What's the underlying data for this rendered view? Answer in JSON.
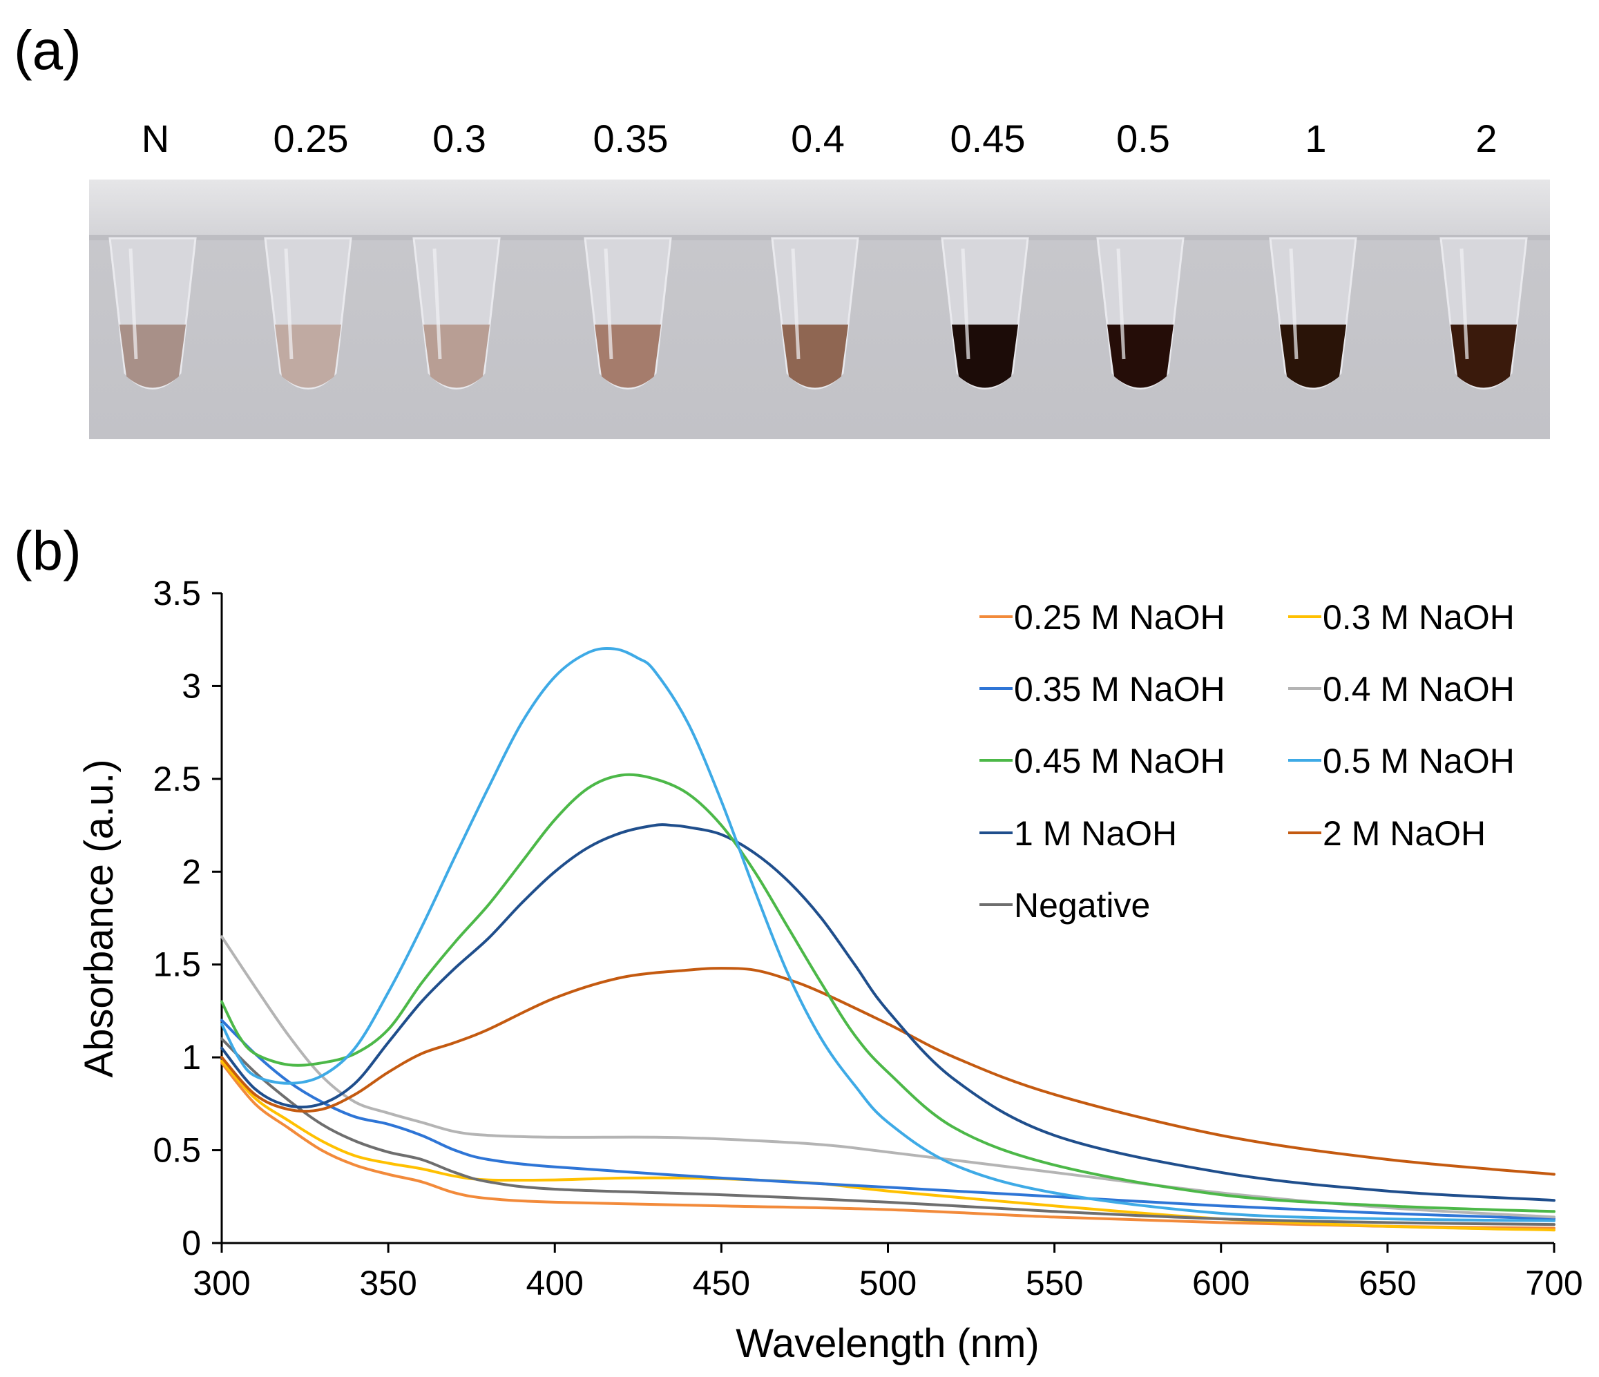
{
  "panel_a": {
    "label": "(a)",
    "tube_labels": [
      "N",
      "0.25",
      "0.3",
      "0.35",
      "0.4",
      "0.45",
      "0.5",
      "1",
      "2"
    ],
    "tube_liquid_colors": [
      "#a89088",
      "#c0aaa2",
      "#b89e94",
      "#a57c6c",
      "#8f6652",
      "#1c0c08",
      "#250d08",
      "#2a1408",
      "#3a1a0c"
    ],
    "background_color": "#c8c8cc"
  },
  "panel_b": {
    "label": "(b)"
  },
  "chart_data": {
    "type": "line",
    "xlabel": "Wavelength (nm)",
    "ylabel": "Absorbance (a.u.)",
    "xlim": [
      300,
      700
    ],
    "ylim": [
      0,
      3.5
    ],
    "xticks": [
      "300",
      "350",
      "400",
      "450",
      "500",
      "550",
      "600",
      "650",
      "700"
    ],
    "yticks": [
      "0",
      "0.5",
      "1",
      "1.5",
      "2",
      "2.5",
      "3",
      "3.5"
    ],
    "grid": false,
    "legend_position": "top-right",
    "series": [
      {
        "name": "0.25 M NaOH",
        "color": "#f28a3a",
        "x": [
          300,
          310,
          320,
          330,
          340,
          350,
          360,
          370,
          380,
          400,
          450,
          500,
          550,
          600,
          650,
          700
        ],
        "y": [
          0.97,
          0.75,
          0.62,
          0.5,
          0.42,
          0.37,
          0.33,
          0.27,
          0.24,
          0.22,
          0.2,
          0.18,
          0.14,
          0.11,
          0.09,
          0.08
        ]
      },
      {
        "name": "0.3 M NaOH",
        "color": "#ffc000",
        "x": [
          300,
          310,
          320,
          330,
          340,
          350,
          360,
          370,
          380,
          400,
          420,
          440,
          460,
          480,
          500,
          550,
          600,
          650,
          700
        ],
        "y": [
          0.98,
          0.78,
          0.66,
          0.55,
          0.47,
          0.43,
          0.4,
          0.36,
          0.34,
          0.34,
          0.35,
          0.35,
          0.34,
          0.32,
          0.28,
          0.2,
          0.13,
          0.09,
          0.07
        ]
      },
      {
        "name": "0.35 M NaOH",
        "color": "#2e75d6",
        "x": [
          300,
          310,
          320,
          330,
          340,
          350,
          360,
          370,
          380,
          400,
          450,
          500,
          550,
          600,
          650,
          700
        ],
        "y": [
          1.2,
          1.02,
          0.87,
          0.76,
          0.68,
          0.64,
          0.58,
          0.5,
          0.45,
          0.41,
          0.35,
          0.3,
          0.25,
          0.2,
          0.16,
          0.13
        ]
      },
      {
        "name": "0.4 M NaOH",
        "color": "#b4b4b4",
        "x": [
          300,
          310,
          320,
          330,
          340,
          350,
          360,
          370,
          380,
          400,
          430,
          450,
          480,
          500,
          550,
          600,
          650,
          700
        ],
        "y": [
          1.65,
          1.38,
          1.12,
          0.9,
          0.76,
          0.7,
          0.65,
          0.6,
          0.58,
          0.57,
          0.57,
          0.56,
          0.53,
          0.49,
          0.38,
          0.27,
          0.19,
          0.14
        ]
      },
      {
        "name": "0.45 M NaOH",
        "color": "#4cb848",
        "x": [
          300,
          305,
          310,
          320,
          330,
          340,
          350,
          360,
          370,
          380,
          390,
          400,
          410,
          420,
          430,
          440,
          450,
          460,
          470,
          480,
          490,
          500,
          520,
          550,
          600,
          650,
          700
        ],
        "y": [
          1.3,
          1.12,
          1.02,
          0.96,
          0.97,
          1.02,
          1.15,
          1.4,
          1.62,
          1.82,
          2.05,
          2.28,
          2.45,
          2.52,
          2.5,
          2.42,
          2.25,
          2.0,
          1.7,
          1.4,
          1.12,
          0.92,
          0.62,
          0.42,
          0.26,
          0.2,
          0.17
        ]
      },
      {
        "name": "0.5 M NaOH",
        "color": "#3eaae6",
        "x": [
          300,
          305,
          310,
          320,
          330,
          340,
          350,
          360,
          370,
          380,
          390,
          400,
          410,
          418,
          425,
          430,
          440,
          450,
          460,
          470,
          480,
          490,
          500,
          520,
          550,
          600,
          650,
          700
        ],
        "y": [
          1.18,
          1.0,
          0.9,
          0.86,
          0.9,
          1.05,
          1.35,
          1.7,
          2.08,
          2.45,
          2.8,
          3.05,
          3.18,
          3.2,
          3.15,
          3.08,
          2.8,
          2.38,
          1.9,
          1.45,
          1.1,
          0.85,
          0.65,
          0.42,
          0.27,
          0.16,
          0.13,
          0.12
        ]
      },
      {
        "name": "1 M NaOH",
        "color": "#1f4e8c",
        "x": [
          300,
          310,
          320,
          330,
          340,
          350,
          360,
          370,
          380,
          390,
          400,
          410,
          420,
          430,
          435,
          440,
          450,
          460,
          470,
          480,
          490,
          500,
          520,
          550,
          600,
          650,
          700
        ],
        "y": [
          1.05,
          0.83,
          0.74,
          0.75,
          0.86,
          1.08,
          1.3,
          1.48,
          1.64,
          1.83,
          2.0,
          2.13,
          2.21,
          2.25,
          2.25,
          2.24,
          2.2,
          2.1,
          1.95,
          1.75,
          1.5,
          1.25,
          0.88,
          0.58,
          0.38,
          0.28,
          0.23
        ]
      },
      {
        "name": "2 M NaOH",
        "color": "#c45a10",
        "x": [
          300,
          310,
          320,
          330,
          340,
          350,
          360,
          370,
          380,
          400,
          420,
          440,
          450,
          460,
          470,
          480,
          500,
          520,
          550,
          600,
          650,
          700
        ],
        "y": [
          1.0,
          0.8,
          0.72,
          0.72,
          0.8,
          0.92,
          1.02,
          1.08,
          1.15,
          1.32,
          1.43,
          1.47,
          1.48,
          1.47,
          1.42,
          1.35,
          1.18,
          1.0,
          0.8,
          0.58,
          0.45,
          0.37
        ]
      },
      {
        "name": "Negative",
        "color": "#6e6e6e",
        "x": [
          300,
          310,
          320,
          330,
          340,
          350,
          360,
          370,
          380,
          400,
          450,
          500,
          550,
          600,
          650,
          700
        ],
        "y": [
          1.1,
          0.92,
          0.77,
          0.64,
          0.55,
          0.49,
          0.45,
          0.38,
          0.33,
          0.29,
          0.26,
          0.22,
          0.17,
          0.13,
          0.11,
          0.1
        ]
      }
    ]
  }
}
